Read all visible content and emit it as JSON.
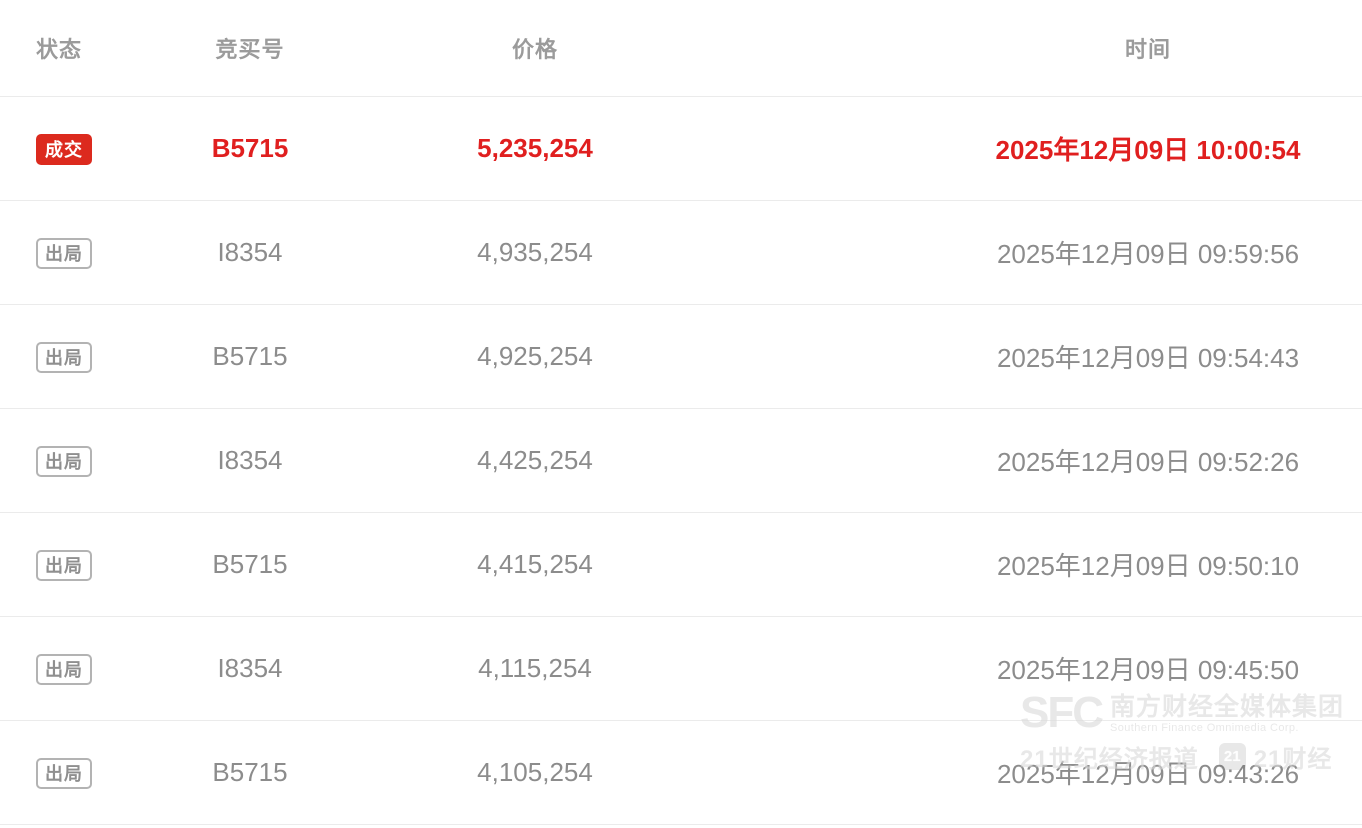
{
  "table": {
    "columns": [
      {
        "label": "状态"
      },
      {
        "label": "竞买号"
      },
      {
        "label": "价格"
      },
      {
        "label": "时间"
      }
    ],
    "rows": [
      {
        "status": "成交",
        "type": "won",
        "bidder": "B5715",
        "price": "5,235,254",
        "time": "2025年12月09日 10:00:54"
      },
      {
        "status": "出局",
        "type": "out",
        "bidder": "I8354",
        "price": "4,935,254",
        "time": "2025年12月09日 09:59:56"
      },
      {
        "status": "出局",
        "type": "out",
        "bidder": "B5715",
        "price": "4,925,254",
        "time": "2025年12月09日 09:54:43"
      },
      {
        "status": "出局",
        "type": "out",
        "bidder": "I8354",
        "price": "4,425,254",
        "time": "2025年12月09日 09:52:26"
      },
      {
        "status": "出局",
        "type": "out",
        "bidder": "B5715",
        "price": "4,415,254",
        "time": "2025年12月09日 09:50:10"
      },
      {
        "status": "出局",
        "type": "out",
        "bidder": "I8354",
        "price": "4,115,254",
        "time": "2025年12月09日 09:45:50"
      },
      {
        "status": "出局",
        "type": "out",
        "bidder": "B5715",
        "price": "4,105,254",
        "time": "2025年12月09日 09:43:26"
      }
    ]
  },
  "watermark": {
    "logo": "SFC",
    "org_cn": "南方财经全媒体集团",
    "org_en": "Southern Finance Omnimedia Corp.",
    "brand1": "21世纪经济报道",
    "badge": "21",
    "brand2": "21财经"
  },
  "colors": {
    "accent_red": "#e01f1f",
    "badge_won_bg": "#dc2a1e",
    "badge_out_border": "#b3b3b3",
    "text_gray": "#8c8c8c",
    "header_gray": "#9b9b9b",
    "row_border": "#ebebeb"
  }
}
